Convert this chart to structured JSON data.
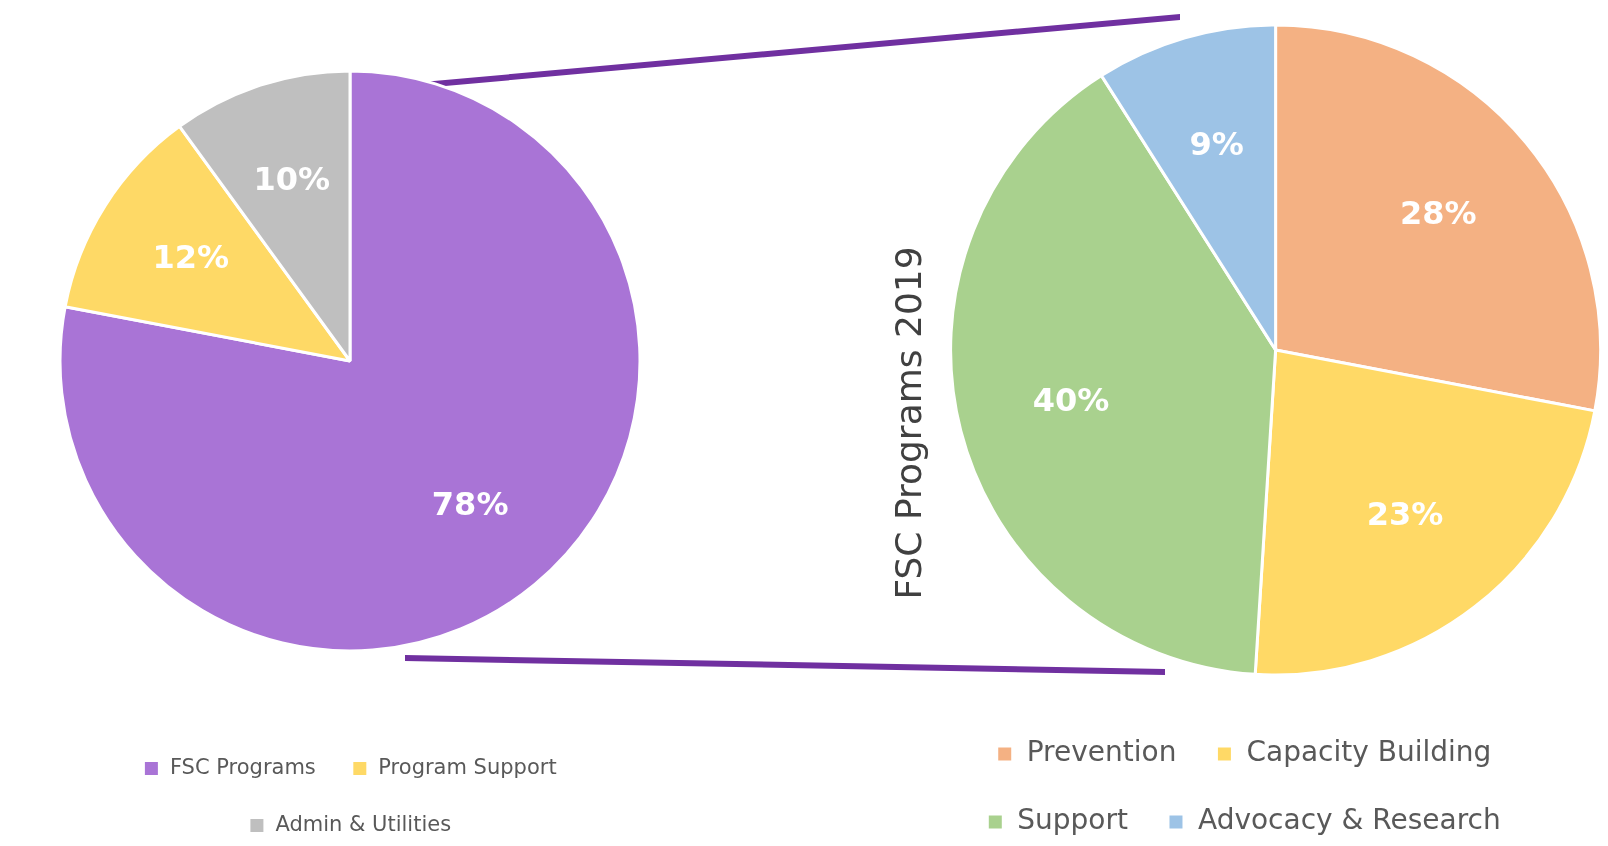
{
  "chart_data": [
    {
      "type": "pie",
      "categories": [
        "FSC Programs",
        "Program Support",
        "Admin & Utilities"
      ],
      "values": [
        78,
        12,
        10
      ],
      "colors": [
        "#a974d6",
        "#fed966",
        "#bfbfbf"
      ],
      "value_labels": [
        "78%",
        "12%",
        "10%"
      ],
      "legend": "bottom"
    },
    {
      "type": "pie",
      "title": "FSC Programs 2019",
      "categories": [
        "Prevention",
        "Capacity Building",
        "Support",
        "Advocacy & Research"
      ],
      "values": [
        28,
        23,
        40,
        9
      ],
      "colors": [
        "#f4b183",
        "#ffd966",
        "#a9d18e",
        "#9dc3e6"
      ],
      "value_labels": [
        "28%",
        "23%",
        "40%",
        "9%"
      ],
      "legend": "bottom"
    }
  ]
}
